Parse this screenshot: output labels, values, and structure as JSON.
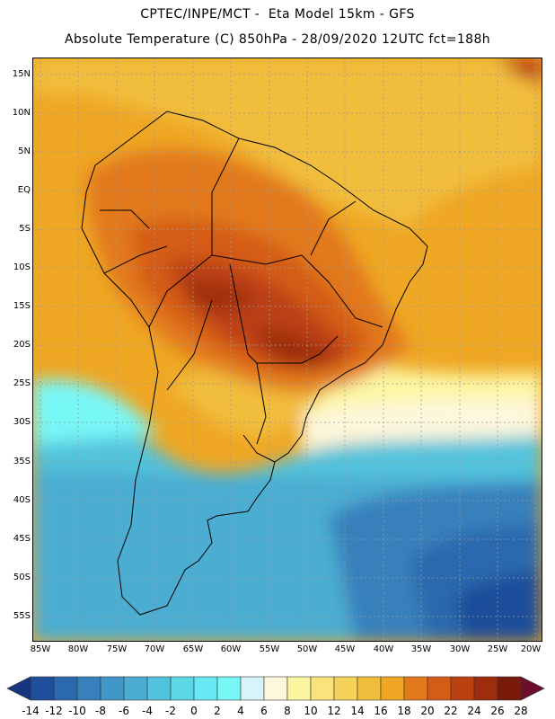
{
  "title": {
    "line1": "CPTEC/INPE/MCT -  Eta Model 15km - GFS",
    "line2": "Absolute Temperature (C) 850hPa - 28/09/2020 12UTC fct=188h"
  },
  "map": {
    "variable": "Absolute Temperature (C) 850hPa",
    "lat_labels": [
      "15N",
      "10N",
      "5N",
      "EQ",
      "5S",
      "10S",
      "15S",
      "20S",
      "25S",
      "30S",
      "35S",
      "40S",
      "45S",
      "50S",
      "55S"
    ],
    "lon_labels": [
      "85W",
      "80W",
      "75W",
      "70W",
      "65W",
      "60W",
      "55W",
      "50W",
      "45W",
      "40W",
      "35W",
      "30W",
      "25W",
      "20W"
    ]
  },
  "colorbar": {
    "labels": [
      "-14",
      "-12",
      "-10",
      "-8",
      "-6",
      "-4",
      "-2",
      "0",
      "2",
      "4",
      "6",
      "8",
      "10",
      "12",
      "14",
      "16",
      "18",
      "20",
      "22",
      "24",
      "26",
      "28"
    ],
    "colors": [
      "#16357e",
      "#1f4e9a",
      "#2b69ad",
      "#3780bc",
      "#4296c8",
      "#4cadd2",
      "#52c3dc",
      "#5bd7e6",
      "#66e9f2",
      "#78f7f7",
      "#d8f4fb",
      "#fdf7dc",
      "#fcf6a2",
      "#f9e37a",
      "#f5d25a",
      "#f1bd3c",
      "#efa724",
      "#e2791b",
      "#d45c17",
      "#bc4012",
      "#9e2d0e",
      "#7a1a0a",
      "#6d0e2a"
    ]
  }
}
